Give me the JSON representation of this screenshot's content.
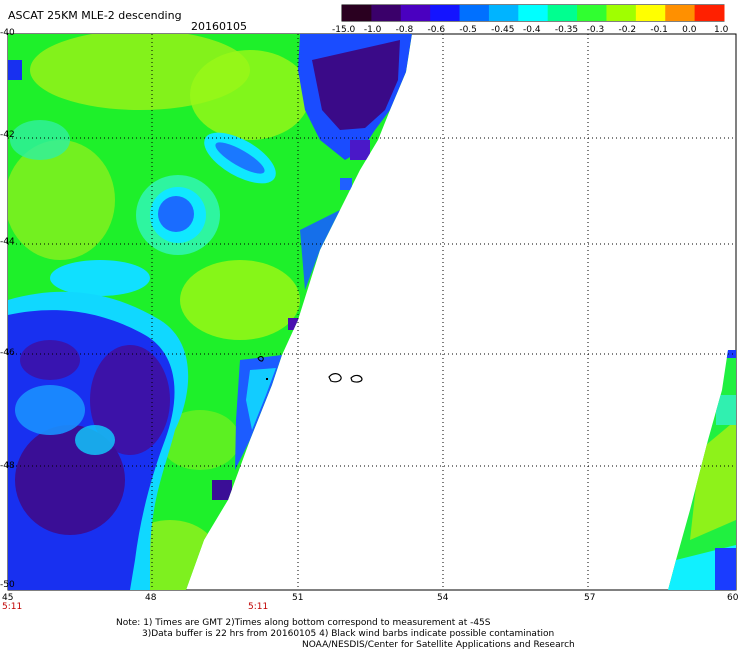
{
  "header": {
    "title": "ASCAT 25KM MLE-2 descending",
    "date": "20160105"
  },
  "colorbar": {
    "labels": [
      "-15.0",
      "-1.0",
      "-0.8",
      "-0.6",
      "-0.5",
      "-0.45",
      "-0.4",
      "-0.35",
      "-0.3",
      "-0.2",
      "-0.1",
      "0.0",
      "1.0"
    ],
    "colors": [
      "#2a0020",
      "#3a006a",
      "#4a00c0",
      "#1414ff",
      "#0070ff",
      "#00b4ff",
      "#00ffff",
      "#00ff90",
      "#30ff30",
      "#a0ff00",
      "#ffff00",
      "#ff9000",
      "#ff2000"
    ]
  },
  "axes": {
    "y_labels": [
      "-40",
      "-42",
      "-44",
      "-46",
      "-48",
      "-50"
    ],
    "x_labels": [
      "45",
      "48",
      "51",
      "54",
      "57",
      "60"
    ],
    "times": [
      "5:11",
      "5:11"
    ]
  },
  "notes": {
    "line1": "Note: 1) Times are GMT 2)Times along bottom correspond to measurement at -45S",
    "line2": "3)Data buffer is 22 hrs from 20160105 4) Black wind barbs indicate possible contamination",
    "line3": "NOAA/NESDIS/Center for Satellite Applications and Research"
  }
}
